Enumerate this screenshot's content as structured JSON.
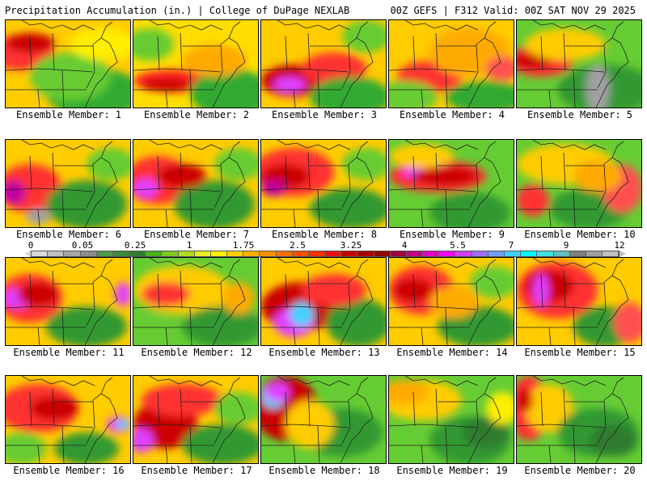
{
  "header": {
    "left_title": "Precipitation Accumulation (in.) | College of DuPage NEXLAB",
    "right_title": "00Z GEFS | F312 Valid: 00Z SAT NOV 29 2025"
  },
  "legend": {
    "labels": [
      "0",
      "0.05",
      "0.25",
      "1",
      "1.75",
      "2.5",
      "3.25",
      "4",
      "5.5",
      "7",
      "9",
      "12"
    ],
    "colors": [
      "#d9d9d9",
      "#bfbfbf",
      "#a6a6a6",
      "#8c8c8c",
      "#4d9a4d",
      "#3c8c3c",
      "#2e7d2e",
      "#49b020",
      "#7dc820",
      "#b2dc20",
      "#e8ee20",
      "#ffee00",
      "#ffd000",
      "#ffb000",
      "#ff9000",
      "#ff7000",
      "#ff5000",
      "#ff3000",
      "#e81010",
      "#c80000",
      "#a80000",
      "#900000",
      "#a00040",
      "#c00080",
      "#e000c0",
      "#ff00ff",
      "#d040ff",
      "#a070ff",
      "#70a0ff",
      "#40d0ff",
      "#00ffff",
      "#40e0e0",
      "#60c0c0",
      "#808080",
      "#a0a0a0",
      "#c0c0c0"
    ]
  },
  "panels": [
    {
      "caption": "Ensemble Member: 1",
      "base": "#ffcc00",
      "blobs": [
        "#ff3030:20:40:40:22",
        "#cc0000:30:28:30:12",
        "#33aa33:110:90:60:30",
        "#66cc33:80:70:50:30",
        "#ffee00:120:30:40:20"
      ]
    },
    {
      "caption": "Ensemble Member: 2",
      "base": "#ffdd00",
      "blobs": [
        "#ff2020:50:75:50:14",
        "#cc0000:40:80:30:8",
        "#33aa33:120:90:50:30",
        "#66cc33:20:30:30:20",
        "#ffaa00:100:50:40:20"
      ]
    },
    {
      "caption": "Ensemble Member: 3",
      "base": "#ffcc00",
      "blobs": [
        "#cc0000:40:75:40:20",
        "#e040ff:35:80:20:10",
        "#ff3030:90:60:40:20",
        "#33aa33:110:95:50:25",
        "#66cc33:130:20:30:20"
      ]
    },
    {
      "caption": "Ensemble Member: 4",
      "base": "#ffcc00",
      "blobs": [
        "#ff3030:50:70:40:20",
        "#ffaa00:100:40:50:30",
        "#33aa33:120:95:50:20",
        "#66cc33:20:95:40:20",
        "#ff5050:140:60:20:15"
      ]
    },
    {
      "caption": "Ensemble Member: 5",
      "base": "#66cc33",
      "blobs": [
        "#ff3030:30:50:40:20",
        "#cc0000:20:50:25:10",
        "#339933:110:85:60:30",
        "#a0a0a0:100:85:15:30",
        "#ffcc00:60:30:50:20"
      ]
    },
    {
      "caption": "Ensemble Member: 6",
      "base": "#ffcc00",
      "blobs": [
        "#ff3030:30:60:40:30",
        "#c000a0:10:65:15:15",
        "#339933:100:80:50:30",
        "#66cc33:130:30:30:20",
        "#a0a0a0:40:95:15:10"
      ]
    },
    {
      "caption": "Ensemble Member: 7",
      "base": "#ffcc00",
      "blobs": [
        "#ff3030:30:50:40:30",
        "#e040ff:15:60:15:12",
        "#339933:100:80:50:30",
        "#cc0000:60:45:30:15",
        "#66cc33:130:30:30:20"
      ]
    },
    {
      "caption": "Ensemble Member: 8",
      "base": "#ffcc00",
      "blobs": [
        "#ff3030:40:40:50:30",
        "#cc0000:30:45:30:15",
        "#339933:110:85:50:25",
        "#66cc33:130:30:30:20",
        "#c000a0:15:60:15:10"
      ]
    },
    {
      "caption": "Ensemble Member: 9",
      "base": "#66cc33",
      "blobs": [
        "#ff3030:60:45:60:20",
        "#e040ff:55:40:40:8",
        "#cc0000:70:45:40:12",
        "#339933:100:90:50:25",
        "#ffcc00:40:20:40:15"
      ]
    },
    {
      "caption": "Ensemble Member: 10",
      "base": "#66cc33",
      "blobs": [
        "#ffcc00:60:30:60:25",
        "#ff3030:20:75:20:20",
        "#339933:90:85:50:25",
        "#ff5050:130:60:25:30",
        "#ffaa00:100:45:30:20"
      ]
    },
    {
      "caption": "Ensemble Member: 11",
      "base": "#ffcc00",
      "blobs": [
        "#ff3030:30:50:40:30",
        "#e040ff:15:50:20:12",
        "#339933:100:85:50:25",
        "#cc0000:40:45:25:15",
        "#e040ff:145:45:10:15"
      ]
    },
    {
      "caption": "Ensemble Member: 12",
      "base": "#66cc33",
      "blobs": [
        "#ffcc00:60:40:60:30",
        "#ff3030:40:45:30:15",
        "#339933:110:85:50:25",
        "#ffaa00:130:50:20:20",
        "#66cc33:20:90:30:20"
      ]
    },
    {
      "caption": "Ensemble Member: 13",
      "base": "#ffcc00",
      "blobs": [
        "#cc0000:50:60:50:30",
        "#e040ff:40:80:25:18",
        "#40d0ff:50:70:15:15",
        "#339933:120:80:40:30",
        "#ff3030:90:40:40:20"
      ]
    },
    {
      "caption": "Ensemble Member: 14",
      "base": "#ffcc00",
      "blobs": [
        "#ff3030:40:40:40:30",
        "#cc0000:30:40:25:15",
        "#339933:110:85:50:25",
        "#66cc33:130:30:30:20",
        "#ffaa00:80:55:30:20"
      ]
    },
    {
      "caption": "Ensemble Member: 15",
      "base": "#ffcc00",
      "blobs": [
        "#ff3030:50:40:50:35",
        "#cc0000:40:35:30:20",
        "#e040ff:30:40:10:20",
        "#339933:110:85:40:25",
        "#ff5050:140:80:20:25"
      ]
    },
    {
      "caption": "Ensemble Member: 16",
      "base": "#ffcc00",
      "blobs": [
        "#ff3030:40:40:50:30",
        "#cc0000:60:40:30:15",
        "#e040ff:140:60:15:10",
        "#40d0ff:145:60:8:6",
        "#339933:100:90:40:20",
        "#66cc33:20:90:30:20"
      ]
    },
    {
      "caption": "Ensemble Member: 17",
      "base": "#ffcc00",
      "blobs": [
        "#cc0000:40:60:40:30",
        "#e040ff:10:80:15:15",
        "#ff3030:60:30:50:20",
        "#339933:110:85:50:25",
        "#66cc33:130:40:30:20"
      ]
    },
    {
      "caption": "Ensemble Member: 18",
      "base": "#66cc33",
      "blobs": [
        "#cc0000:30:40:40:40",
        "#40d0ff:15:25:15:15",
        "#e040ff:20:20:15:12",
        "#339933:100:70:50:30",
        "#ffcc00:60:60:30:30"
      ]
    },
    {
      "caption": "Ensemble Member: 19",
      "base": "#66cc33",
      "blobs": [
        "#ffcc00:40:30:50:25",
        "#339933:100:80:50:30",
        "#ffaa00:20:20:30:15",
        "#2e7d2e:120:70:30:20",
        "#ffee00:140:40:20:20"
      ]
    },
    {
      "caption": "Ensemble Member: 20",
      "base": "#66cc33",
      "blobs": [
        "#ff3030:15:40:25:40",
        "#ffcc00:40:40:30:30",
        "#339933:100:70:50:30",
        "#2e7d2e:120:80:30:20",
        "#cc0000:10:30:10:15"
      ]
    }
  ]
}
